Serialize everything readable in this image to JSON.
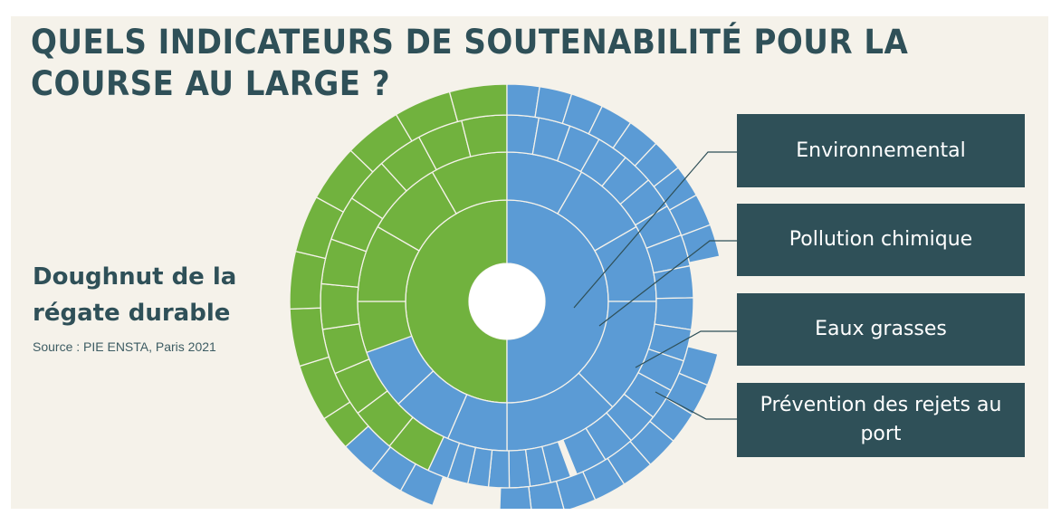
{
  "title": "QUELS INDICATEURS DE SOUTENABILITÉ POUR LA COURSE AU LARGE ?",
  "subtitle": "Doughnut de la régate durable",
  "source": "Source : PIE ENSTA, Paris 2021",
  "colors": {
    "social": "#71b23e",
    "environmental": "#5b9bd5",
    "box": "#2f5058",
    "background": "#f5f2ea",
    "text": "#2f5058"
  },
  "boxes": [
    {
      "label": "Environnemental"
    },
    {
      "label": "Pollution chimique"
    },
    {
      "label": "Eaux grasses"
    },
    {
      "label": "Prévention des rejets au port"
    }
  ],
  "doughnut": {
    "rings": [
      {
        "ring": 1,
        "segments": [
          {
            "group": "social",
            "span": 180
          },
          {
            "group": "environmental",
            "span": 180
          }
        ]
      },
      {
        "ring": 2,
        "segments": [
          {
            "group": "social",
            "start": 180,
            "span": 90,
            "count": 2
          },
          {
            "group": "social",
            "start": 270,
            "span": 90,
            "count": 3
          },
          {
            "group": "environmental",
            "start": 0,
            "span": 90,
            "count": 3
          },
          {
            "group": "environmental",
            "start": 90,
            "span": 90,
            "count": 2
          },
          {
            "group": "environmental",
            "start": 180,
            "span": 70,
            "count": 3
          }
        ]
      },
      {
        "ring": 3,
        "segments": [
          {
            "group": "social",
            "start": 205,
            "span": 155,
            "count": 11
          },
          {
            "group": "environmental",
            "start": 0,
            "span": 158,
            "count": 16
          },
          {
            "group": "environmental",
            "start": 160,
            "span": 45,
            "count": 7
          }
        ]
      },
      {
        "ring": 4,
        "segments": [
          {
            "group": "social",
            "start": 222,
            "span": 138,
            "count": 9
          },
          {
            "group": "environmental",
            "start": 0,
            "span": 78,
            "count": 9
          },
          {
            "group": "environmental",
            "start": 104,
            "span": 78,
            "count": 9
          },
          {
            "group": "environmental",
            "start": 200,
            "span": 28,
            "count": 3
          }
        ]
      }
    ]
  }
}
